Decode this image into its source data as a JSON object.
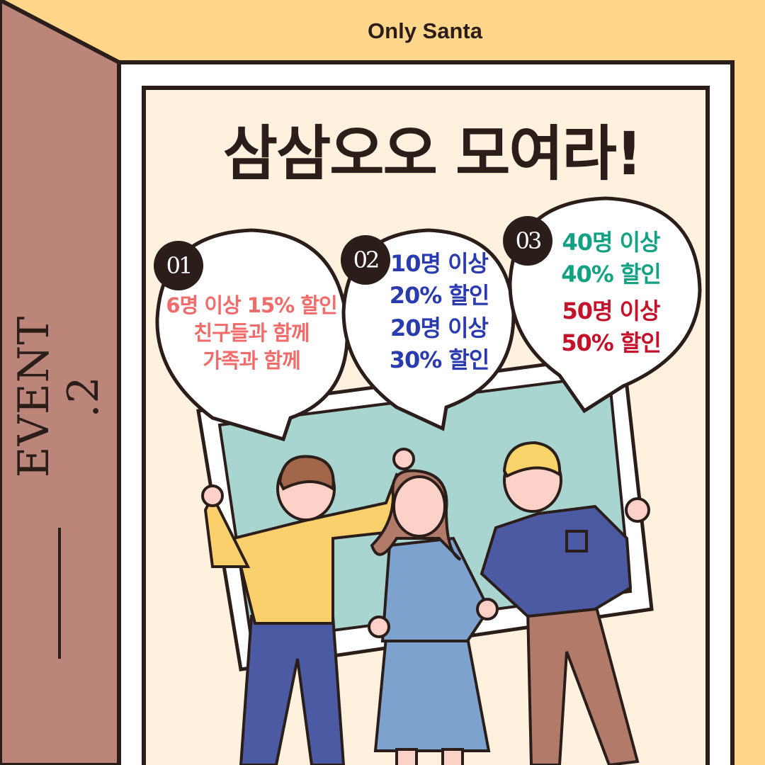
{
  "brand": "Only Santa",
  "event_label": "EVENT .2",
  "title": "삼삼오오 모여라!",
  "colors": {
    "background": "#FFD68A",
    "side_panel": "#BC857A",
    "poster": "#FFF1DE",
    "outline": "#2B1D1A",
    "photo_bg": "#A8D5D0"
  },
  "bubbles": [
    {
      "badge": "01",
      "color": "#F26B6B",
      "lines": [
        "6명 이상 15% 할인",
        "친구들과 함께",
        "가족과 함께"
      ]
    },
    {
      "badge": "02",
      "color": "#2A3BB0",
      "lines": [
        "10명 이상",
        "20% 할인",
        "20명 이상",
        "30% 할인"
      ]
    },
    {
      "badge": "03",
      "lines_a_color": "#12A283",
      "lines_b_color": "#C4122B",
      "lines_a": [
        "40명 이상",
        "40% 할인"
      ],
      "lines_b": [
        "50명 이상",
        "50% 할인"
      ]
    }
  ]
}
